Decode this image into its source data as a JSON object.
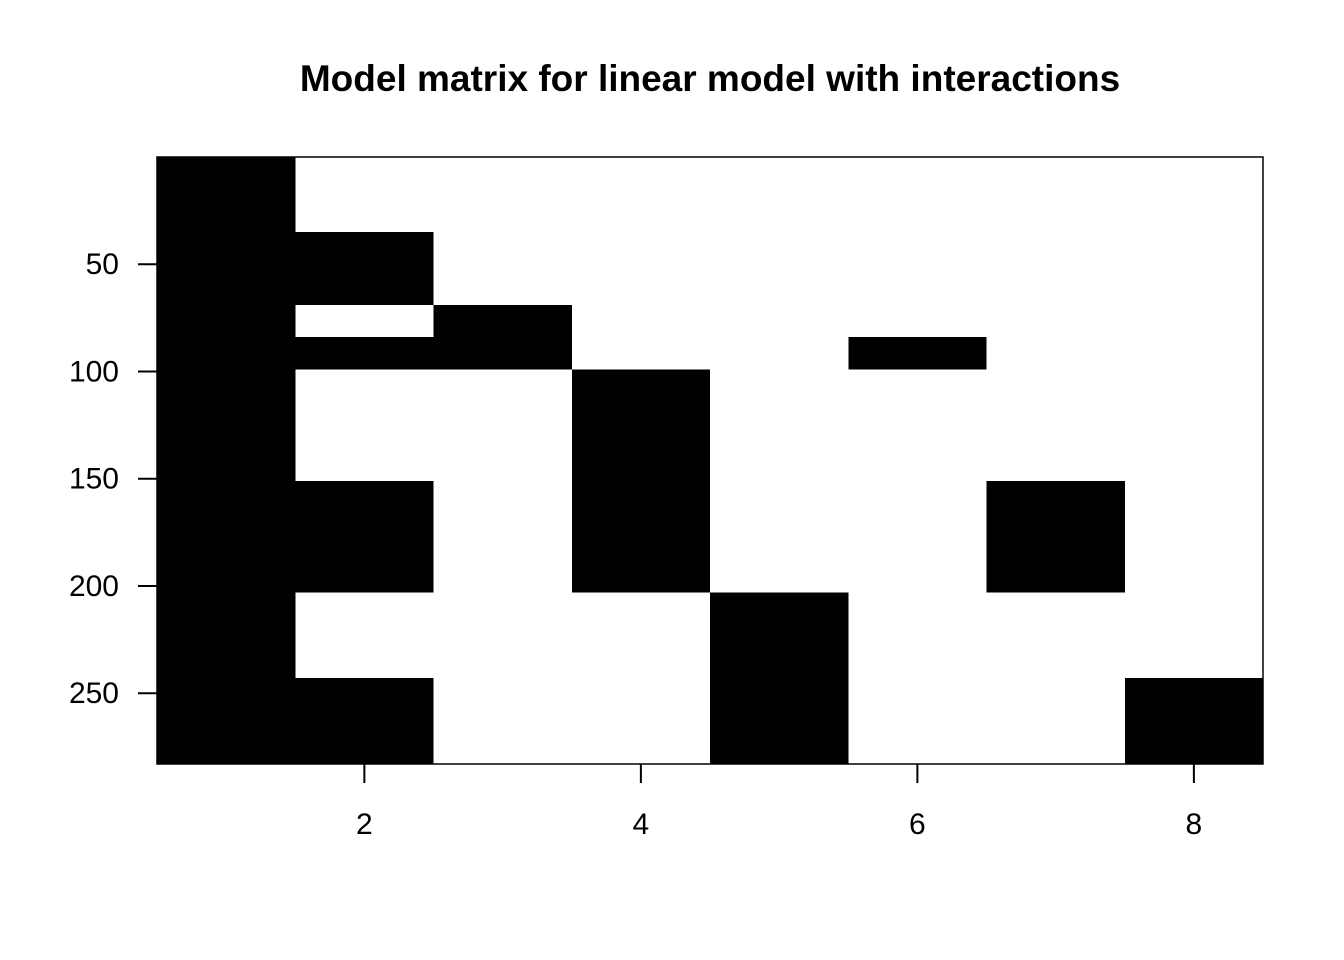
{
  "chart_data": {
    "type": "heatmap",
    "title": "Model matrix for linear model with interactions",
    "xlabel": "",
    "ylabel": "",
    "xlim": [
      0.5,
      8.5
    ],
    "ylim": [
      0,
      283
    ],
    "y_reversed": true,
    "x_ticks": [
      2,
      4,
      6,
      8
    ],
    "y_ticks": [
      50,
      100,
      150,
      200,
      250
    ],
    "colors": {
      "filled": "#000000",
      "empty": "#ffffff",
      "frame": "#000000"
    },
    "filled_blocks": [
      {
        "col": 1,
        "rows": [
          0,
          283
        ]
      },
      {
        "col": 2,
        "rows": [
          35,
          69
        ]
      },
      {
        "col": 2,
        "rows": [
          84,
          99
        ]
      },
      {
        "col": 2,
        "rows": [
          151,
          203
        ]
      },
      {
        "col": 2,
        "rows": [
          243,
          283
        ]
      },
      {
        "col": 3,
        "rows": [
          69,
          99
        ]
      },
      {
        "col": 4,
        "rows": [
          99,
          203
        ]
      },
      {
        "col": 5,
        "rows": [
          203,
          283
        ]
      },
      {
        "col": 6,
        "rows": [
          84,
          99
        ]
      },
      {
        "col": 7,
        "rows": [
          151,
          203
        ]
      },
      {
        "col": 8,
        "rows": [
          243,
          283
        ]
      }
    ]
  }
}
